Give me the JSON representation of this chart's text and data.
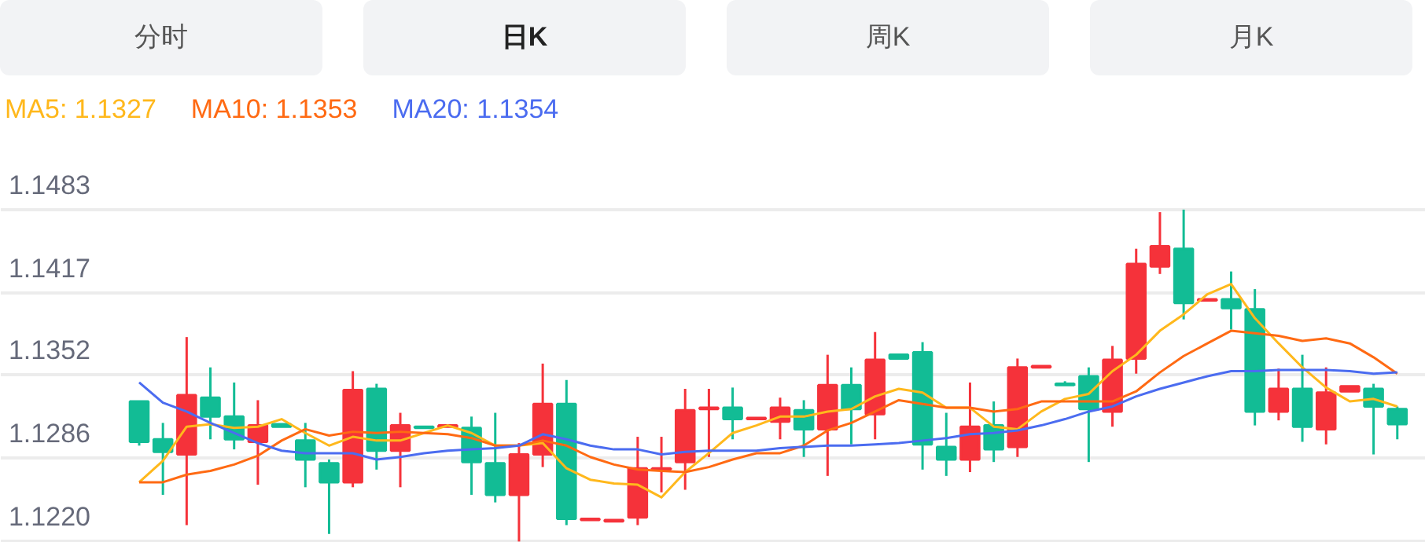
{
  "chart_data": {
    "type": "candlestick",
    "annotations": [
      "分时",
      "日K",
      "周K",
      "月K"
    ],
    "categories": [
      null,
      null,
      null,
      null,
      null,
      null,
      null,
      null,
      null,
      null,
      null,
      null,
      null,
      null,
      null,
      null,
      null,
      null,
      null,
      null,
      null,
      null,
      null,
      null,
      null,
      null,
      null,
      null,
      null,
      null,
      null,
      null,
      null,
      null,
      null,
      null,
      null,
      null,
      null,
      null,
      null,
      null,
      null,
      null,
      null,
      null,
      null,
      null,
      null,
      null,
      null,
      null,
      null,
      null
    ],
    "ohlc": [
      [
        1.1331,
        1.1331,
        1.1296,
        1.1299
      ],
      [
        1.1301,
        1.1314,
        1.1257,
        1.1291
      ],
      [
        1.1289,
        1.1382,
        1.1233,
        1.1336
      ],
      [
        1.1334,
        1.1358,
        1.1301,
        1.1319
      ],
      [
        1.1319,
        1.1346,
        1.1293,
        1.1301
      ],
      [
        1.1299,
        1.1332,
        1.1265,
        1.1312
      ],
      [
        1.1313,
        1.1313,
        1.1311,
        1.1311
      ],
      [
        1.13,
        1.1314,
        1.1263,
        1.1285
      ],
      [
        1.1282,
        1.1285,
        1.1226,
        1.1267
      ],
      [
        1.1267,
        1.1355,
        1.1263,
        1.134
      ],
      [
        1.1341,
        1.1345,
        1.1277,
        1.1292
      ],
      [
        1.1292,
        1.1322,
        1.1263,
        1.1312
      ],
      [
        1.1311,
        1.1311,
        1.131,
        1.131
      ],
      [
        1.1311,
        1.1312,
        1.1311,
        1.1312
      ],
      [
        1.131,
        1.1319,
        1.1257,
        1.1283
      ],
      [
        1.1282,
        1.1322,
        1.1251,
        1.1257
      ],
      [
        1.1257,
        1.1298,
        1.122,
        1.1289
      ],
      [
        1.1289,
        1.1361,
        1.1279,
        1.1329
      ],
      [
        1.1329,
        1.1348,
        1.1233,
        1.1238
      ],
      [
        1.1237,
        1.1238,
        1.1237,
        1.1238
      ],
      [
        1.1236,
        1.1237,
        1.1236,
        1.1237
      ],
      [
        1.1239,
        1.1303,
        1.1233,
        1.1278
      ],
      [
        1.1277,
        1.1303,
        1.1259,
        1.1278
      ],
      [
        1.1283,
        1.1341,
        1.1261,
        1.1324
      ],
      [
        1.1325,
        1.1341,
        1.1287,
        1.1326
      ],
      [
        1.1326,
        1.1342,
        1.1301,
        1.1317
      ],
      [
        1.1317,
        1.1318,
        1.1317,
        1.1318
      ],
      [
        1.1315,
        1.1334,
        1.1301,
        1.1326
      ],
      [
        1.1324,
        1.1332,
        1.1287,
        1.1309
      ],
      [
        1.1309,
        1.1368,
        1.1272,
        1.1344
      ],
      [
        1.1344,
        1.1358,
        1.1297,
        1.1325
      ],
      [
        1.1321,
        1.1386,
        1.1301,
        1.1364
      ],
      [
        1.1368,
        1.1368,
        1.1365,
        1.1365
      ],
      [
        1.137,
        1.1378,
        1.1277,
        1.1297
      ],
      [
        1.1295,
        1.1322,
        1.1272,
        1.1285
      ],
      [
        1.1285,
        1.1346,
        1.1275,
        1.1311
      ],
      [
        1.1312,
        1.1331,
        1.1283,
        1.1293
      ],
      [
        1.1295,
        1.1365,
        1.1287,
        1.1358
      ],
      [
        1.1358,
        1.1359,
        1.1358,
        1.1359
      ],
      [
        1.1345,
        1.1347,
        1.1344,
        1.1344
      ],
      [
        1.1351,
        1.1358,
        1.1283,
        1.1325
      ],
      [
        1.1323,
        1.1375,
        1.1311,
        1.1364
      ],
      [
        1.1365,
        1.1452,
        1.1353,
        1.144
      ],
      [
        1.1438,
        1.1481,
        1.1432,
        1.1454
      ],
      [
        1.1452,
        1.1483,
        1.1396,
        1.1409
      ],
      [
        1.1411,
        1.1412,
        1.1411,
        1.1412
      ],
      [
        1.1412,
        1.1434,
        1.1388,
        1.1405
      ],
      [
        1.1404,
        1.142,
        1.1312,
        1.1323
      ],
      [
        1.1323,
        1.1357,
        1.1316,
        1.1341
      ],
      [
        1.1341,
        1.1368,
        1.1299,
        1.1311
      ],
      [
        1.1309,
        1.1358,
        1.1297,
        1.1338
      ],
      [
        1.1339,
        1.1343,
        1.1339,
        1.1343
      ],
      [
        1.1341,
        1.1345,
        1.1289,
        1.1327
      ],
      [
        1.1325,
        1.1327,
        1.1301,
        1.1313
      ]
    ],
    "colors": [
      "#12bc95",
      "#12bc95",
      "#f5323a",
      "#12bc95",
      "#12bc95",
      "#f5323a",
      "#12bc95",
      "#12bc95",
      "#12bc95",
      "#f5323a",
      "#12bc95",
      "#f5323a",
      "#12bc95",
      "#f5323a",
      "#12bc95",
      "#12bc95",
      "#f5323a",
      "#f5323a",
      "#12bc95",
      "#f5323a",
      "#f5323a",
      "#f5323a",
      "#f5323a",
      "#f5323a",
      "#f5323a",
      "#12bc95",
      "#f5323a",
      "#f5323a",
      "#12bc95",
      "#f5323a",
      "#12bc95",
      "#f5323a",
      "#12bc95",
      "#12bc95",
      "#12bc95",
      "#f5323a",
      "#12bc95",
      "#f5323a",
      "#f5323a",
      "#12bc95",
      "#12bc95",
      "#f5323a",
      "#f5323a",
      "#f5323a",
      "#12bc95",
      "#f5323a",
      "#12bc95",
      "#12bc95",
      "#f5323a",
      "#12bc95",
      "#f5323a",
      "#f5323a",
      "#12bc95",
      "#12bc95"
    ],
    "series": [
      {
        "name": "MA5: 1.1327",
        "type": "line",
        "color": "#ffb81c",
        "values": [
          1.1267,
          1.1284,
          1.1311,
          1.1313,
          1.131,
          1.1311,
          1.1317,
          1.1306,
          1.1296,
          1.1303,
          1.13,
          1.13,
          1.1306,
          1.1312,
          1.1306,
          1.1296,
          1.1296,
          1.1298,
          1.1278,
          1.1269,
          1.1266,
          1.1265,
          1.1255,
          1.1275,
          1.129,
          1.1306,
          1.1312,
          1.1319,
          1.1319,
          1.1323,
          1.1325,
          1.1335,
          1.1341,
          1.1338,
          1.1326,
          1.1326,
          1.1311,
          1.1309,
          1.1323,
          1.1333,
          1.1337,
          1.1355,
          1.1368,
          1.1387,
          1.14,
          1.1416,
          1.1424,
          1.1397,
          1.1377,
          1.1358,
          1.1342,
          1.1331,
          1.1333,
          1.1327
        ]
      },
      {
        "name": "MA10: 1.1353",
        "type": "line",
        "color": "#ff6a13",
        "values": [
          1.1267,
          1.1267,
          1.1273,
          1.1276,
          1.1281,
          1.1288,
          1.13,
          1.1309,
          1.1304,
          1.1307,
          1.1306,
          1.1307,
          1.1306,
          1.1305,
          1.1302,
          1.1296,
          1.1296,
          1.13,
          1.1296,
          1.1287,
          1.1281,
          1.1277,
          1.1276,
          1.1275,
          1.1279,
          1.1285,
          1.129,
          1.129,
          1.1296,
          1.1308,
          1.1314,
          1.1323,
          1.1332,
          1.1329,
          1.1326,
          1.1326,
          1.1323,
          1.1325,
          1.1331,
          1.1331,
          1.1331,
          1.1331,
          1.1339,
          1.1354,
          1.1367,
          1.1377,
          1.1387,
          1.1385,
          1.1383,
          1.1379,
          1.1381,
          1.1377,
          1.1366,
          1.1353
        ]
      },
      {
        "name": "MA20: 1.1354",
        "type": "line",
        "color": "#4b6cf0",
        "values": [
          1.1346,
          1.133,
          1.1323,
          1.1314,
          1.1306,
          1.1298,
          1.1292,
          1.129,
          1.129,
          1.129,
          1.1285,
          1.1287,
          1.129,
          1.1292,
          1.1293,
          1.1294,
          1.1296,
          1.1305,
          1.1301,
          1.1296,
          1.1293,
          1.1293,
          1.1289,
          1.1291,
          1.1292,
          1.1292,
          1.1292,
          1.1294,
          1.1295,
          1.1296,
          1.1296,
          1.1297,
          1.1298,
          1.13,
          1.1302,
          1.1305,
          1.1306,
          1.1308,
          1.1312,
          1.1317,
          1.1323,
          1.1327,
          1.1335,
          1.1341,
          1.1346,
          1.1351,
          1.1355,
          1.1355,
          1.1356,
          1.1356,
          1.1356,
          1.1355,
          1.1353,
          1.1354
        ]
      }
    ],
    "ylim": [
      1.1219,
      1.1524
    ],
    "yticks": [
      1.1483,
      1.1417,
      1.1352,
      1.1286,
      {
        "value": 1.122,
        "label": "1.1220"
      }
    ],
    "grid": "y",
    "legend": "top left"
  }
}
